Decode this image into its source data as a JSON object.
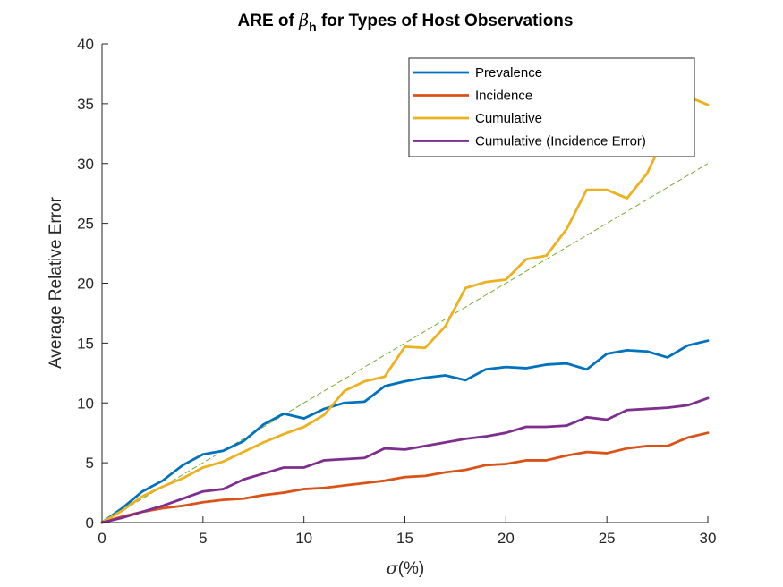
{
  "chart_data": {
    "type": "line",
    "title": {
      "prefix": "ARE of ",
      "symbol": "β",
      "subscript": "h",
      "suffix": " for Types of Host Observations"
    },
    "xlabel": {
      "symbol": "σ",
      "rest": "(%)"
    },
    "ylabel": "Average Relative Error",
    "xlim": [
      0,
      30
    ],
    "ylim": [
      0,
      40
    ],
    "xticks": [
      0,
      5,
      10,
      15,
      20,
      25,
      30
    ],
    "yticks": [
      0,
      5,
      10,
      15,
      20,
      25,
      30,
      35,
      40
    ],
    "grid": false,
    "legend_position": "top-right",
    "x": [
      0,
      1,
      2,
      3,
      4,
      5,
      6,
      7,
      8,
      9,
      10,
      11,
      12,
      13,
      14,
      15,
      16,
      17,
      18,
      19,
      20,
      21,
      22,
      23,
      24,
      25,
      26,
      27,
      28,
      29,
      30
    ],
    "series": [
      {
        "name": "Prevalence",
        "color": "#0072BD",
        "values": [
          0,
          1.2,
          2.6,
          3.5,
          4.8,
          5.7,
          6.0,
          6.8,
          8.2,
          9.1,
          8.7,
          9.5,
          10.0,
          10.1,
          11.4,
          11.8,
          12.1,
          12.3,
          11.9,
          12.8,
          13.0,
          12.9,
          13.2,
          13.3,
          12.8,
          14.1,
          14.4,
          14.3,
          13.8,
          14.8,
          15.2
        ]
      },
      {
        "name": "Incidence",
        "color": "#D95319",
        "values": [
          0,
          0.5,
          0.9,
          1.2,
          1.4,
          1.7,
          1.9,
          2.0,
          2.3,
          2.5,
          2.8,
          2.9,
          3.1,
          3.3,
          3.5,
          3.8,
          3.9,
          4.2,
          4.4,
          4.8,
          4.9,
          5.2,
          5.2,
          5.6,
          5.9,
          5.8,
          6.2,
          6.4,
          6.4,
          7.1,
          7.5
        ]
      },
      {
        "name": "Cumulative",
        "color": "#EDB120",
        "values": [
          0,
          1.0,
          2.2,
          3.0,
          3.7,
          4.6,
          5.1,
          5.9,
          6.7,
          7.4,
          8.0,
          9.0,
          11.0,
          11.8,
          12.2,
          14.7,
          14.6,
          16.4,
          19.6,
          20.1,
          20.3,
          22.0,
          22.3,
          24.5,
          27.8,
          27.8,
          27.1,
          29.2,
          32.8,
          35.6,
          34.9
        ]
      },
      {
        "name": "Cumulative (Incidence Error)",
        "color": "#7E2F8E",
        "values": [
          0,
          0.4,
          0.9,
          1.4,
          2.0,
          2.6,
          2.8,
          3.6,
          4.1,
          4.6,
          4.6,
          5.2,
          5.3,
          5.4,
          6.2,
          6.1,
          6.4,
          6.7,
          7.0,
          7.2,
          7.5,
          8.0,
          8.0,
          8.1,
          8.8,
          8.6,
          9.4,
          9.5,
          9.6,
          9.8,
          10.4
        ]
      }
    ],
    "reference_line": {
      "style": "dashed",
      "color": "#77AC30",
      "x": [
        0,
        30
      ],
      "y": [
        0,
        30
      ]
    }
  }
}
